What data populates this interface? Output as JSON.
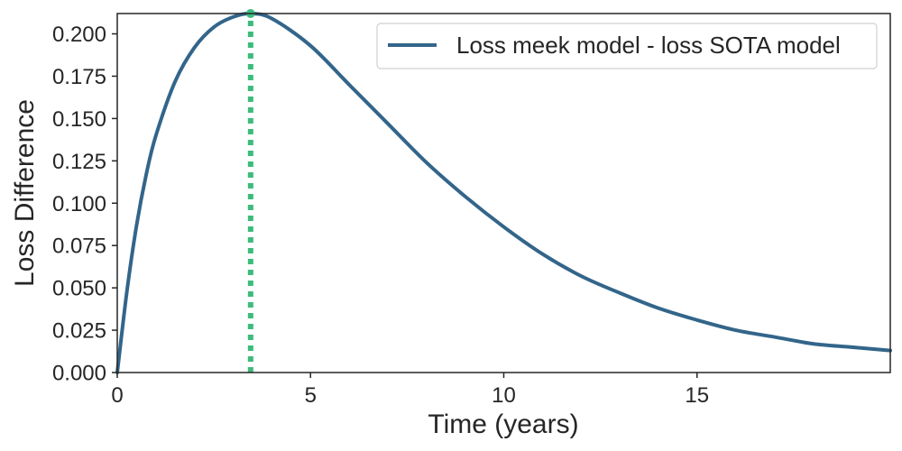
{
  "chart_data": {
    "type": "line",
    "title": "",
    "xlabel": "Time (years)",
    "ylabel": "Loss Difference",
    "xlim": [
      0,
      20
    ],
    "ylim": [
      0,
      0.212
    ],
    "xticks": [
      0,
      5,
      10,
      15
    ],
    "xtick_labels": [
      "0",
      "5",
      "10",
      "15"
    ],
    "yticks": [
      0,
      0.025,
      0.05,
      0.075,
      0.1,
      0.125,
      0.15,
      0.175,
      0.2
    ],
    "ytick_labels": [
      "0.000",
      "0.025",
      "0.050",
      "0.075",
      "0.100",
      "0.125",
      "0.150",
      "0.175",
      "0.200"
    ],
    "grid": false,
    "legend_position": "top-right",
    "series": [
      {
        "name": "Loss meek model - loss SOTA model",
        "color": "#33658a",
        "x": [
          0,
          0.25,
          0.5,
          0.75,
          1,
          1.5,
          2,
          2.5,
          3,
          3.45,
          4,
          5,
          6,
          7,
          8,
          9,
          10,
          11,
          12,
          13,
          14,
          15,
          16,
          17,
          18,
          19,
          20
        ],
        "values": [
          0,
          0.048,
          0.087,
          0.117,
          0.14,
          0.172,
          0.192,
          0.204,
          0.21,
          0.212,
          0.209,
          0.193,
          0.17,
          0.147,
          0.124,
          0.104,
          0.086,
          0.07,
          0.057,
          0.047,
          0.038,
          0.031,
          0.025,
          0.021,
          0.017,
          0.015,
          0.013
        ]
      }
    ],
    "annotations": [
      {
        "kind": "vertical-dotted-line-at-peak",
        "x": 3.45,
        "y": 0.212,
        "color": "#3dbb7d"
      }
    ],
    "colors": {
      "axis": "#262626",
      "legend_border": "#d0d0d0"
    }
  }
}
